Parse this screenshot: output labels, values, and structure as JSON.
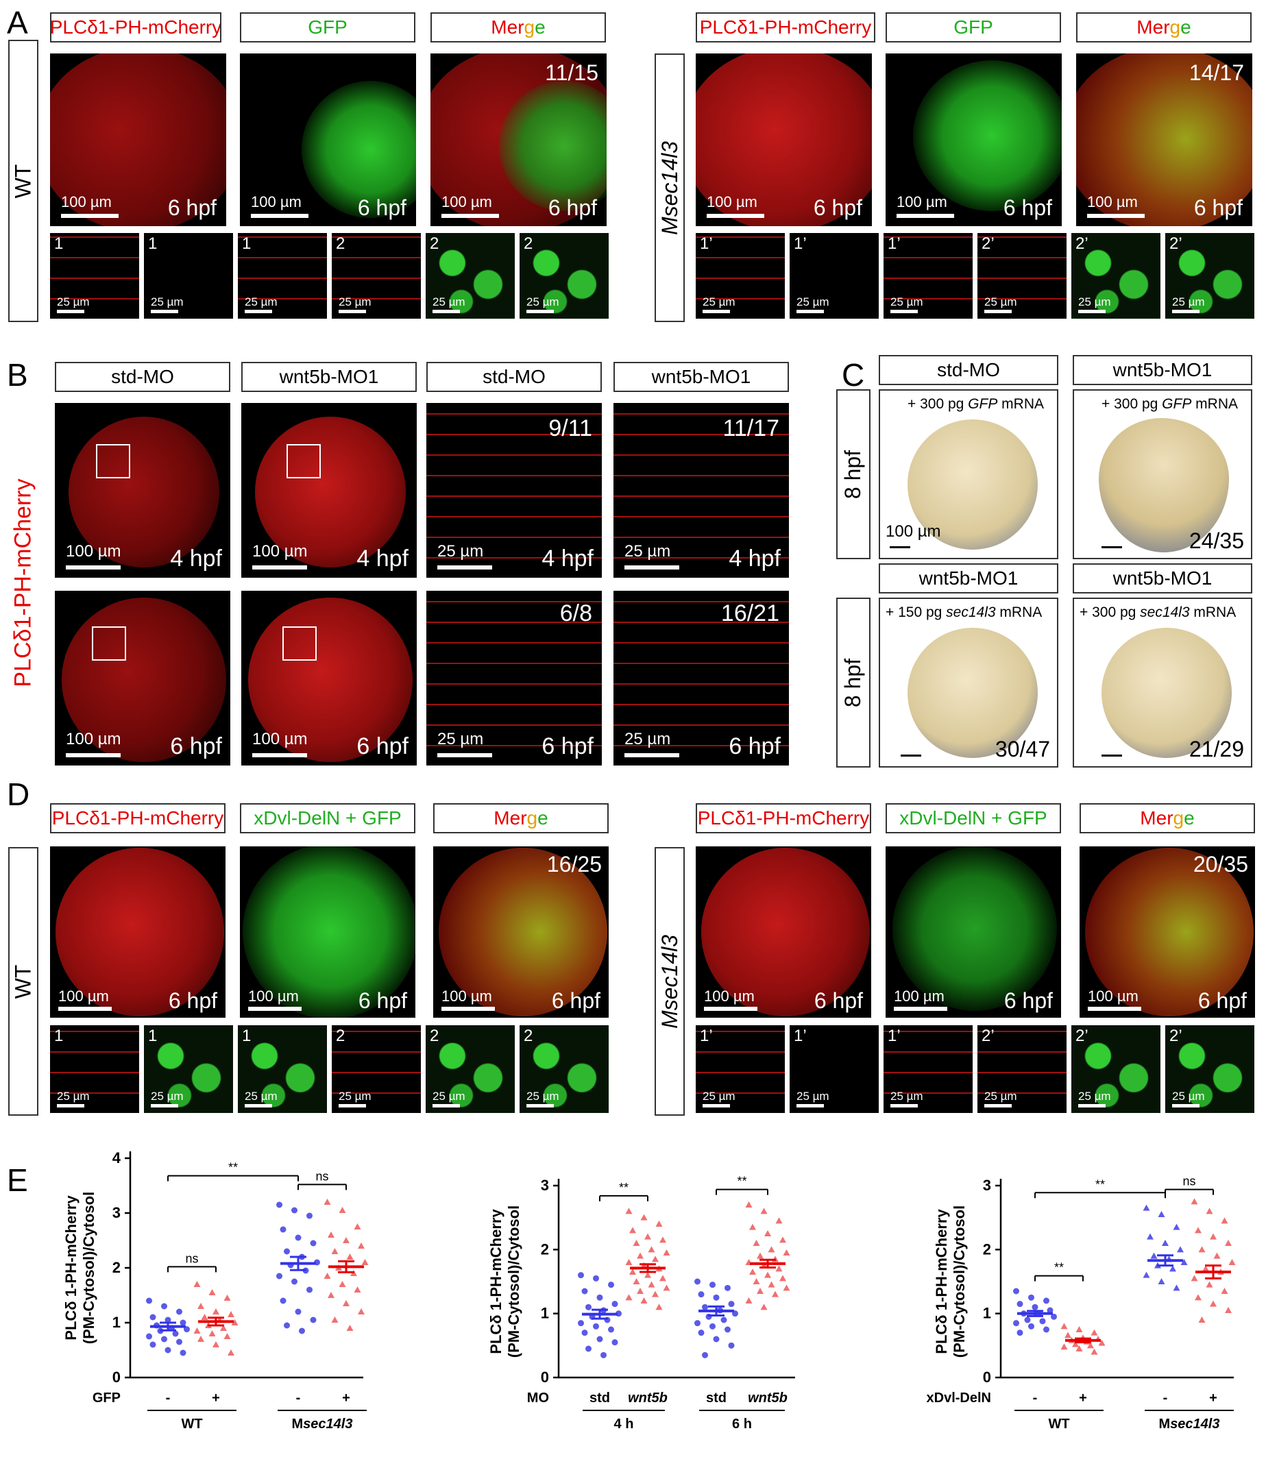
{
  "panel_labels": [
    "A",
    "B",
    "C",
    "D",
    "E"
  ],
  "panelA": {
    "headers": [
      "PLCδ1-PH-mCherry",
      "GFP",
      "Merge"
    ],
    "row_labels": [
      "WT",
      "Msec14l3"
    ],
    "counts": [
      "11/15",
      "14/17"
    ],
    "stage": "6 hpf",
    "scale_large": "100 µm",
    "scale_small": "25 µm",
    "insets_wt": [
      "1",
      "1",
      "1",
      "2",
      "2",
      "2"
    ],
    "insets_m": [
      "1’",
      "1’",
      "1’",
      "2’",
      "2’",
      "2’"
    ]
  },
  "panelB": {
    "headers": [
      "std-MO",
      "wnt5b-MO1",
      "std-MO",
      "wnt5b-MO1"
    ],
    "side_label": "PLCδ1-PH-mCherry",
    "counts_row1": [
      "9/11",
      "11/17"
    ],
    "counts_row2": [
      "6/8",
      "16/21"
    ],
    "stage1": "4 hpf",
    "stage2": "6 hpf",
    "scale_large": "100 µm",
    "scale_small": "25 µm"
  },
  "panelC": {
    "headers_top": [
      "std-MO",
      "wnt5b-MO1"
    ],
    "headers_bottom": [
      "wnt5b-MO1",
      "wnt5b-MO1"
    ],
    "side_label": "8 hpf",
    "captions": [
      "+ 300 pg GFP mRNA",
      "+ 300 pg GFP mRNA",
      "+ 150 pg sec14l3 mRNA",
      "+ 300 pg sec14l3 mRNA"
    ],
    "counts": [
      "",
      "24/35",
      "30/47",
      "21/29"
    ],
    "scale": "100 µm"
  },
  "panelD": {
    "headers": [
      "PLCδ1-PH-mCherry",
      "xDvl-DelN + GFP",
      "Merge"
    ],
    "row_labels": [
      "WT",
      "Msec14l3"
    ],
    "counts": [
      "16/25",
      "20/35"
    ],
    "stage": "6 hpf",
    "scale_large": "100 µm",
    "scale_small": "25 µm"
  },
  "panelE": {
    "ylabel": "PLCδ 1-PH-mCherry\n(PM-Cytosol)/Cytosol",
    "colors": {
      "blue": "#3333e6",
      "red": "#e60000",
      "blue_pts": "#5a5ae8",
      "red_pts": "#f07070"
    }
  },
  "chart_data": [
    {
      "type": "scatter",
      "ylim": [
        0,
        4
      ],
      "yticks": [
        "0",
        "1",
        "2",
        "3",
        "4"
      ],
      "row_label": "GFP",
      "categories": [
        "-",
        "+",
        "-",
        "+"
      ],
      "groups": [
        "WT",
        "Msec14l3"
      ],
      "series": [
        {
          "name": "WT -",
          "color": "blue",
          "mean": 0.93,
          "sem": 0.07,
          "values": [
            1.4,
            1.3,
            1.2,
            1.1,
            1.05,
            1.0,
            0.95,
            0.9,
            0.88,
            0.85,
            0.8,
            0.75,
            0.7,
            0.65,
            0.6,
            0.5,
            0.45
          ]
        },
        {
          "name": "WT +",
          "color": "red",
          "mean": 1.02,
          "sem": 0.07,
          "values": [
            1.7,
            1.55,
            1.45,
            1.3,
            1.2,
            1.15,
            1.1,
            1.05,
            1.0,
            0.95,
            0.9,
            0.85,
            0.8,
            0.75,
            0.7,
            0.6,
            0.45
          ]
        },
        {
          "name": "Msec14l3 -",
          "color": "blue",
          "mean": 2.08,
          "sem": 0.12,
          "values": [
            3.15,
            3.05,
            2.95,
            2.7,
            2.55,
            2.45,
            2.3,
            2.2,
            2.1,
            2.05,
            1.95,
            1.85,
            1.75,
            1.6,
            1.4,
            1.2,
            1.05,
            0.95,
            0.85
          ]
        },
        {
          "name": "Msec14l3 +",
          "color": "red",
          "mean": 2.02,
          "sem": 0.1,
          "values": [
            3.2,
            3.05,
            2.75,
            2.6,
            2.5,
            2.4,
            2.3,
            2.2,
            2.1,
            2.0,
            1.9,
            1.85,
            1.7,
            1.6,
            1.5,
            1.35,
            1.2,
            1.05,
            0.9
          ]
        }
      ],
      "annotations": [
        {
          "between": [
            0,
            1
          ],
          "text": "ns"
        },
        {
          "between": [
            0,
            2
          ],
          "text": "**"
        },
        {
          "between": [
            2,
            3
          ],
          "text": "ns"
        }
      ]
    },
    {
      "type": "scatter",
      "ylim": [
        0,
        3
      ],
      "yticks": [
        "0",
        "1",
        "2",
        "3"
      ],
      "row_label": "MO",
      "categories": [
        "std",
        "wnt5b",
        "std",
        "wnt5b"
      ],
      "groups": [
        "4 h",
        "6 h"
      ],
      "series": [
        {
          "name": "4 h std",
          "color": "blue",
          "mean": 0.99,
          "sem": 0.07,
          "values": [
            1.6,
            1.55,
            1.45,
            1.35,
            1.25,
            1.15,
            1.1,
            1.05,
            1.0,
            0.95,
            0.9,
            0.85,
            0.8,
            0.75,
            0.7,
            0.6,
            0.55,
            0.45,
            0.35
          ]
        },
        {
          "name": "4 h wnt5b",
          "color": "red",
          "mean": 1.71,
          "sem": 0.06,
          "values": [
            2.6,
            2.5,
            2.4,
            2.3,
            2.2,
            2.15,
            2.1,
            2.0,
            1.95,
            1.9,
            1.85,
            1.8,
            1.75,
            1.7,
            1.65,
            1.6,
            1.55,
            1.5,
            1.45,
            1.4,
            1.35,
            1.3,
            1.25,
            1.2,
            1.1
          ]
        },
        {
          "name": "6 h std",
          "color": "blue",
          "mean": 1.04,
          "sem": 0.07,
          "values": [
            1.5,
            1.45,
            1.4,
            1.3,
            1.25,
            1.15,
            1.1,
            1.05,
            1.0,
            0.95,
            0.9,
            0.85,
            0.8,
            0.75,
            0.7,
            0.6,
            0.5,
            0.35
          ]
        },
        {
          "name": "6 h wnt5b",
          "color": "red",
          "mean": 1.78,
          "sem": 0.06,
          "values": [
            2.7,
            2.6,
            2.45,
            2.35,
            2.25,
            2.15,
            2.1,
            2.0,
            1.95,
            1.9,
            1.85,
            1.8,
            1.75,
            1.7,
            1.65,
            1.6,
            1.55,
            1.5,
            1.45,
            1.4,
            1.35,
            1.3,
            1.2,
            1.1
          ]
        }
      ],
      "annotations": [
        {
          "between": [
            0,
            1
          ],
          "text": "**"
        },
        {
          "between": [
            2,
            3
          ],
          "text": "**"
        }
      ]
    },
    {
      "type": "scatter",
      "ylim": [
        0,
        3
      ],
      "yticks": [
        "0",
        "1",
        "2",
        "3"
      ],
      "row_label": "xDvl-DelN",
      "categories": [
        "-",
        "+",
        "-",
        "+"
      ],
      "groups": [
        "WT",
        "Msec14l3"
      ],
      "series": [
        {
          "name": "WT -",
          "color": "blue",
          "mean": 1.0,
          "sem": 0.04,
          "values": [
            1.35,
            1.25,
            1.2,
            1.15,
            1.1,
            1.05,
            1.0,
            1.0,
            0.95,
            0.9,
            0.88,
            0.85,
            0.8,
            0.75,
            0.7
          ]
        },
        {
          "name": "WT +",
          "color": "red",
          "mean": 0.58,
          "sem": 0.03,
          "values": [
            0.8,
            0.75,
            0.7,
            0.66,
            0.62,
            0.6,
            0.58,
            0.56,
            0.54,
            0.52,
            0.5,
            0.48,
            0.45,
            0.4
          ]
        },
        {
          "name": "Msec14l3 -",
          "color": "blue",
          "mean": 1.83,
          "sem": 0.08,
          "values": [
            2.65,
            2.55,
            2.35,
            2.2,
            2.1,
            2.0,
            1.9,
            1.85,
            1.8,
            1.75,
            1.7,
            1.6,
            1.5,
            1.4
          ]
        },
        {
          "name": "Msec14l3 +",
          "color": "red",
          "mean": 1.65,
          "sem": 0.1,
          "values": [
            2.75,
            2.6,
            2.45,
            2.3,
            2.2,
            2.1,
            2.0,
            1.9,
            1.8,
            1.7,
            1.65,
            1.55,
            1.45,
            1.35,
            1.25,
            1.15,
            1.05,
            0.9
          ]
        }
      ],
      "annotations": [
        {
          "between": [
            0,
            1
          ],
          "text": "**"
        },
        {
          "between": [
            0,
            2
          ],
          "text": "**"
        },
        {
          "between": [
            2,
            3
          ],
          "text": "ns"
        }
      ]
    }
  ]
}
